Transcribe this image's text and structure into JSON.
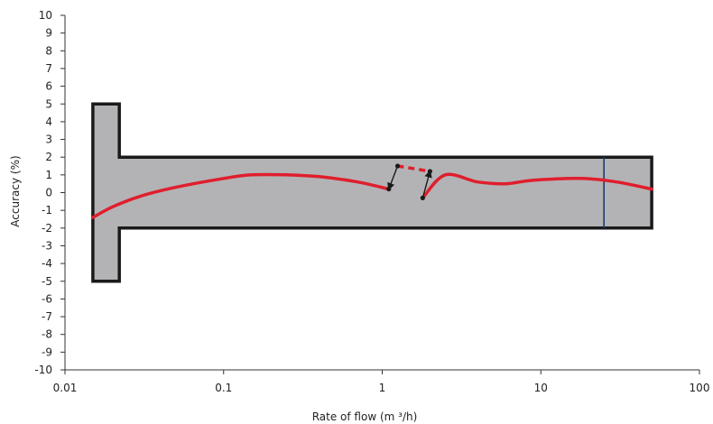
{
  "chart_data": {
    "type": "line",
    "title": "",
    "xlabel": "Rate of flow (m ³/h)",
    "ylabel": "Accuracy (%)",
    "x_scale": "log",
    "xlim": [
      0.01,
      100
    ],
    "ylim": [
      -10,
      10
    ],
    "x_ticks": [
      {
        "value": 0.01,
        "label": "0.01"
      },
      {
        "value": 0.1,
        "label": "0.1"
      },
      {
        "value": 1,
        "label": "1"
      },
      {
        "value": 10,
        "label": "10"
      },
      {
        "value": 100,
        "label": "100"
      }
    ],
    "y_ticks": [
      10,
      9,
      8,
      7,
      6,
      5,
      4,
      3,
      2,
      1,
      0,
      -1,
      -2,
      -3,
      -4,
      -5,
      -6,
      -7,
      -8,
      -9,
      -10
    ],
    "grid": false,
    "colors": {
      "envelope_fill": "#b3b3b5",
      "envelope_stroke": "#1a1a1a",
      "curve": "#e01e2d",
      "marker_line": "#1f3a6e",
      "arrow": "#1a1a1a"
    },
    "tolerance_envelope": [
      {
        "x": 0.015,
        "y": 5
      },
      {
        "x": 0.022,
        "y": 5
      },
      {
        "x": 0.022,
        "y": 2
      },
      {
        "x": 50,
        "y": 2
      },
      {
        "x": 50,
        "y": -2
      },
      {
        "x": 0.022,
        "y": -2
      },
      {
        "x": 0.022,
        "y": -5
      },
      {
        "x": 0.015,
        "y": -5
      }
    ],
    "series": [
      {
        "values": [
          {
            "x": 0.015,
            "y": -1.4
          },
          {
            "x": 0.02,
            "y": -0.8
          },
          {
            "x": 0.03,
            "y": -0.2
          },
          {
            "x": 0.05,
            "y": 0.3
          },
          {
            "x": 0.1,
            "y": 0.8
          },
          {
            "x": 0.15,
            "y": 1.0
          },
          {
            "x": 0.25,
            "y": 1.0
          },
          {
            "x": 0.4,
            "y": 0.9
          },
          {
            "x": 0.7,
            "y": 0.6
          },
          {
            "x": 1.1,
            "y": 0.2
          }
        ]
      },
      {
        "values": [
          {
            "x": 1.8,
            "y": -0.3
          },
          {
            "x": 2.5,
            "y": 1.0
          },
          {
            "x": 4,
            "y": 0.6
          },
          {
            "x": 6,
            "y": 0.5
          },
          {
            "x": 9,
            "y": 0.7
          },
          {
            "x": 18,
            "y": 0.8
          },
          {
            "x": 30,
            "y": 0.6
          },
          {
            "x": 50,
            "y": 0.2
          }
        ]
      },
      {
        "style": "dashed",
        "values": [
          {
            "x": 1.25,
            "y": 1.5
          },
          {
            "x": 2.0,
            "y": 1.2
          }
        ]
      }
    ],
    "transition_arrows": [
      {
        "from": {
          "x": 1.25,
          "y": 1.5
        },
        "to": {
          "x": 1.1,
          "y": 0.2
        }
      },
      {
        "from": {
          "x": 1.8,
          "y": -0.3
        },
        "to": {
          "x": 2.0,
          "y": 1.2
        }
      }
    ],
    "vertical_marker": {
      "x": 25,
      "y_from": 2,
      "y_to": -2
    }
  }
}
